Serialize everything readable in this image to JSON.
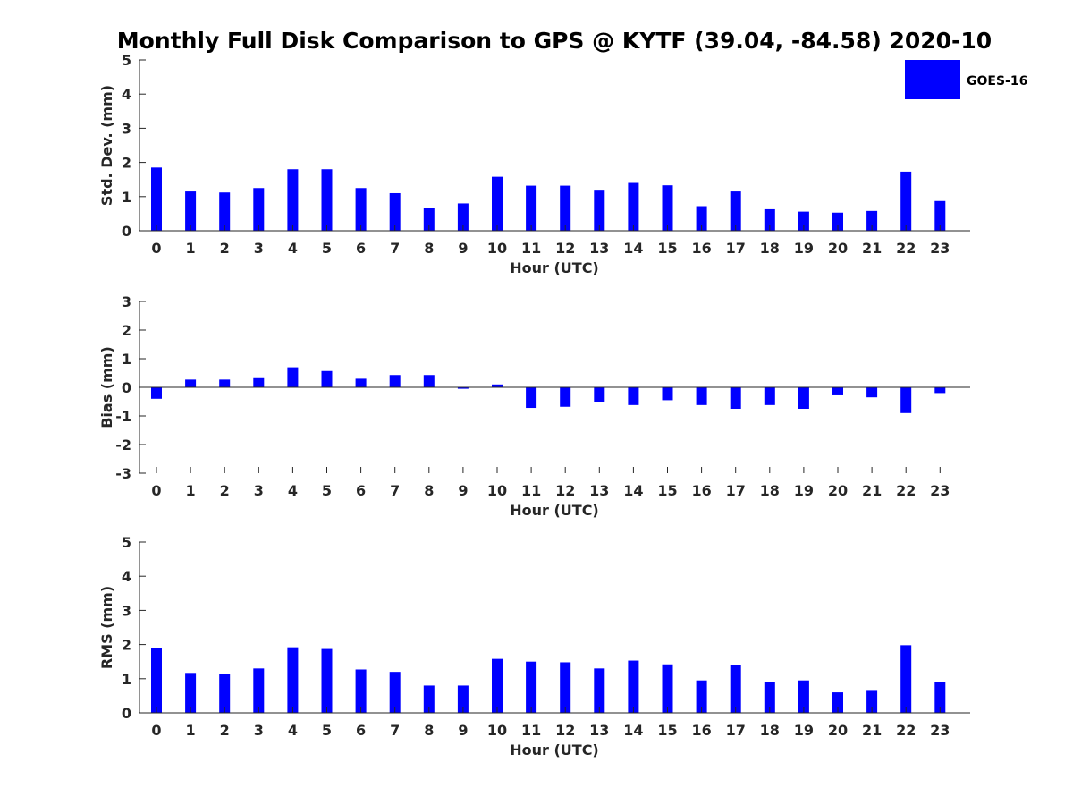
{
  "figure_title": "Monthly Full Disk Comparison to GPS @ KYTF (39.04, -84.58) 2020-10",
  "legend_label": "GOES-16",
  "series_color": "#0000ff",
  "chart_data": [
    {
      "type": "bar",
      "xlabel": "Hour (UTC)",
      "ylabel": "Std. Dev. (mm)",
      "ylim": [
        0,
        5
      ],
      "yticks": [
        0,
        1,
        2,
        3,
        4,
        5
      ],
      "categories": [
        "0",
        "1",
        "2",
        "3",
        "4",
        "5",
        "6",
        "7",
        "8",
        "9",
        "10",
        "11",
        "12",
        "13",
        "14",
        "15",
        "16",
        "17",
        "18",
        "19",
        "20",
        "21",
        "22",
        "23"
      ],
      "series": [
        {
          "name": "GOES-16",
          "values": [
            1.85,
            1.15,
            1.12,
            1.25,
            1.8,
            1.8,
            1.25,
            1.1,
            0.68,
            0.8,
            1.58,
            1.32,
            1.32,
            1.2,
            1.4,
            1.33,
            0.72,
            1.15,
            0.63,
            0.56,
            0.53,
            0.58,
            1.73,
            0.87
          ]
        }
      ]
    },
    {
      "type": "bar",
      "xlabel": "Hour (UTC)",
      "ylabel": "Bias (mm)",
      "ylim": [
        -3,
        3
      ],
      "yticks": [
        -3,
        -2,
        -1,
        0,
        1,
        2,
        3
      ],
      "categories": [
        "0",
        "1",
        "2",
        "3",
        "4",
        "5",
        "6",
        "7",
        "8",
        "9",
        "10",
        "11",
        "12",
        "13",
        "14",
        "15",
        "16",
        "17",
        "18",
        "19",
        "20",
        "21",
        "22",
        "23"
      ],
      "series": [
        {
          "name": "GOES-16",
          "values": [
            -0.4,
            0.27,
            0.27,
            0.32,
            0.7,
            0.57,
            0.3,
            0.43,
            0.43,
            -0.05,
            0.1,
            -0.72,
            -0.68,
            -0.5,
            -0.62,
            -0.45,
            -0.62,
            -0.75,
            -0.62,
            -0.75,
            -0.28,
            -0.35,
            -0.9,
            -0.2
          ]
        }
      ]
    },
    {
      "type": "bar",
      "xlabel": "Hour (UTC)",
      "ylabel": "RMS (mm)",
      "ylim": [
        0,
        5
      ],
      "yticks": [
        0,
        1,
        2,
        3,
        4,
        5
      ],
      "categories": [
        "0",
        "1",
        "2",
        "3",
        "4",
        "5",
        "6",
        "7",
        "8",
        "9",
        "10",
        "11",
        "12",
        "13",
        "14",
        "15",
        "16",
        "17",
        "18",
        "19",
        "20",
        "21",
        "22",
        "23"
      ],
      "series": [
        {
          "name": "GOES-16",
          "values": [
            1.9,
            1.17,
            1.13,
            1.3,
            1.92,
            1.87,
            1.27,
            1.2,
            0.8,
            0.8,
            1.58,
            1.5,
            1.48,
            1.3,
            1.53,
            1.42,
            0.95,
            1.4,
            0.9,
            0.95,
            0.6,
            0.67,
            1.98,
            0.9
          ]
        }
      ]
    }
  ]
}
